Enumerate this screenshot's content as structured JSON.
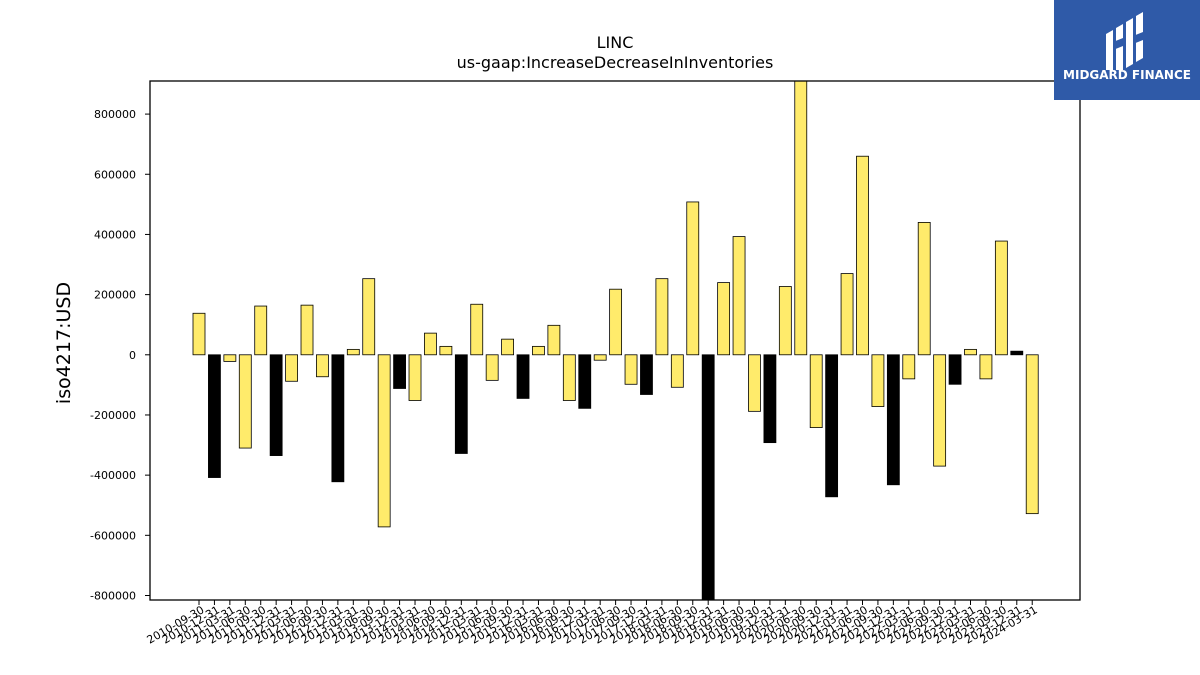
{
  "logo": {
    "text": "MIDGARD FINANCE",
    "icon": "midgard-logo-icon",
    "color": "#2f5aa8"
  },
  "chart_data": {
    "type": "bar",
    "title": "LINC",
    "subtitle": "us-gaap:IncreaseDecreaseInInventories",
    "xlabel": "",
    "ylabel": "iso4217:USD",
    "ylim": [
      -815000,
      910000
    ],
    "yticks": [
      -800000,
      -600000,
      -400000,
      -200000,
      0,
      200000,
      400000,
      600000,
      800000
    ],
    "grid": false,
    "legend": "none",
    "colors": {
      "annual": "#000000",
      "quarterly": "#ffeb6b",
      "edge": "#000000"
    },
    "categories": [
      "2010-09-30",
      "2010-12-31",
      "2011-03-31",
      "2011-06-30",
      "2011-09-30",
      "2011-12-31",
      "2012-03-31",
      "2012-06-30",
      "2012-09-30",
      "2012-12-31",
      "2013-03-31",
      "2013-06-30",
      "2013-09-30",
      "2013-12-31",
      "2014-03-31",
      "2014-06-30",
      "2014-09-30",
      "2014-12-31",
      "2015-03-31",
      "2015-06-30",
      "2015-09-30",
      "2015-12-31",
      "2016-03-31",
      "2016-06-30",
      "2016-09-30",
      "2016-12-31",
      "2017-03-31",
      "2017-06-30",
      "2017-09-30",
      "2017-12-31",
      "2018-03-31",
      "2018-06-30",
      "2018-09-30",
      "2018-12-31",
      "2019-03-31",
      "2019-06-30",
      "2019-09-30",
      "2019-12-31",
      "2020-03-31",
      "2020-06-30",
      "2020-09-30",
      "2020-12-31",
      "2021-03-31",
      "2021-06-30",
      "2021-09-30",
      "2021-12-31",
      "2022-03-31",
      "2022-06-30",
      "2022-09-30",
      "2022-12-31",
      "2023-03-31",
      "2023-06-30",
      "2023-09-30",
      "2023-12-31",
      "2024-03-31"
    ],
    "values": [
      138000,
      -408000,
      -22000,
      -310000,
      162000,
      -335000,
      -88000,
      165000,
      -73000,
      -422000,
      18000,
      253000,
      -572000,
      -112000,
      -152000,
      72000,
      28000,
      -328000,
      168000,
      -85000,
      52000,
      -145000,
      28000,
      98000,
      -152000,
      -178000,
      -18000,
      218000,
      -98000,
      -132000,
      253000,
      -108000,
      508000,
      -815000,
      240000,
      393000,
      -188000,
      -292000,
      227000,
      910000,
      -242000,
      -472000,
      270000,
      660000,
      -172000,
      -432000,
      -80000,
      440000,
      -370000,
      -98000,
      18000,
      -80000,
      378000,
      12000,
      -528000
    ],
    "annual": [
      false,
      true,
      false,
      false,
      false,
      true,
      false,
      false,
      false,
      true,
      false,
      false,
      false,
      true,
      false,
      false,
      false,
      true,
      false,
      false,
      false,
      true,
      false,
      false,
      false,
      true,
      false,
      false,
      false,
      true,
      false,
      false,
      false,
      true,
      false,
      false,
      false,
      true,
      false,
      false,
      false,
      true,
      false,
      false,
      false,
      true,
      false,
      false,
      false,
      true,
      false,
      false,
      false,
      true,
      false
    ]
  }
}
